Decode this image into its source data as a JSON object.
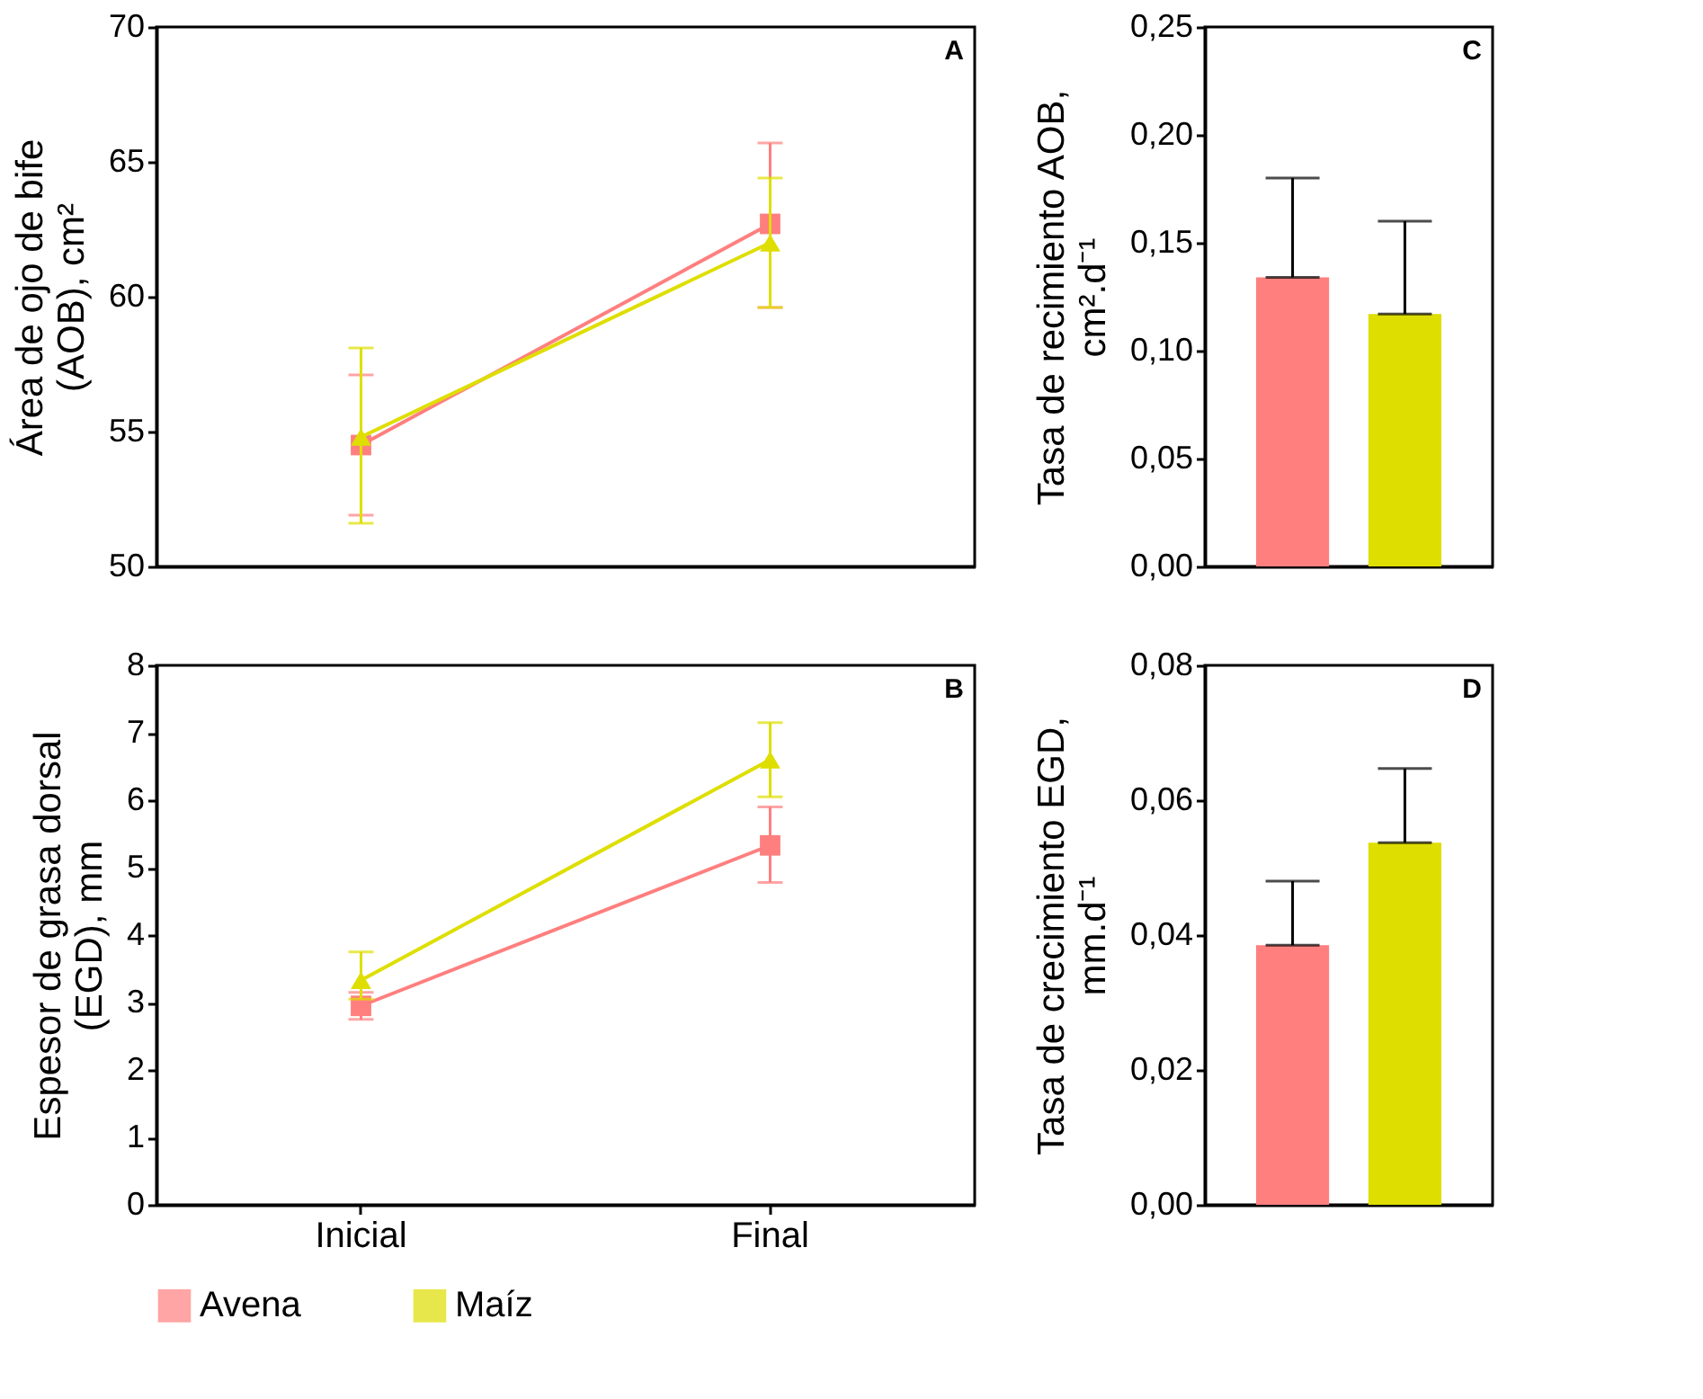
{
  "chart_data": [
    {
      "type": "line",
      "ylabel": "Área de ojo de bife\n(AOB), cm²",
      "categories": [
        null,
        null
      ],
      "ylim": [
        50,
        70
      ],
      "yticks": [
        50,
        55,
        60,
        65,
        70
      ],
      "tick_labels": "y",
      "legend": "bottom",
      "annotations": [
        "A"
      ],
      "series": [
        {
          "name": "Avena",
          "color": "#ff7f7f",
          "marker": "square",
          "values": [
            54.5,
            62.7
          ],
          "errors": [
            [
              51.9,
              57.1
            ],
            [
              59.6,
              65.7
            ]
          ]
        },
        {
          "name": "Maíz",
          "color": "#dede00",
          "marker": "triangle",
          "values": [
            54.8,
            62.0
          ],
          "errors": [
            [
              51.6,
              58.1
            ],
            [
              59.6,
              64.4
            ]
          ]
        }
      ]
    },
    {
      "type": "bar",
      "ylabel": "Tasa de recimiento AOB,\ncm².d⁻¹",
      "categories": [
        null
      ],
      "ylim": [
        0,
        0.25
      ],
      "yticks": [
        {
          "value": 0,
          "label": "0,00"
        },
        {
          "value": 0.05,
          "label": "0,05"
        },
        {
          "value": 0.1,
          "label": "0,10"
        },
        {
          "value": 0.15,
          "label": "0,15"
        },
        {
          "value": 0.2,
          "label": "0,20"
        },
        {
          "value": 0.25,
          "label": "0,25"
        }
      ],
      "tick_labels": "y",
      "legend": "bottom",
      "annotations": [
        "C"
      ],
      "series": [
        {
          "name": "Avena",
          "color": "#ff7f7f",
          "values": [
            0.134
          ],
          "errors": [
            [
              0.134,
              0.18
            ]
          ]
        },
        {
          "name": "Maíz",
          "color": "#dede00",
          "values": [
            0.117
          ],
          "errors": [
            [
              0.117,
              0.16
            ]
          ]
        }
      ]
    },
    {
      "type": "line",
      "ylabel": "Espesor de grasa dorsal\n(EGD), mm",
      "categories": [
        "Inicial",
        "Final"
      ],
      "ylim": [
        0,
        8
      ],
      "yticks": [
        0,
        1,
        2,
        3,
        4,
        5,
        6,
        7,
        8
      ],
      "legend": "bottom",
      "annotations": [
        "B"
      ],
      "series": [
        {
          "name": "Avena",
          "color": "#ff7f7f",
          "marker": "square",
          "values": [
            2.95,
            5.33
          ],
          "errors": [
            [
              2.75,
              3.15
            ],
            [
              4.78,
              5.9
            ]
          ]
        },
        {
          "name": "Maíz",
          "color": "#dede00",
          "marker": "triangle",
          "values": [
            3.33,
            6.6
          ],
          "errors": [
            [
              3.05,
              3.75
            ],
            [
              6.05,
              7.15
            ]
          ]
        }
      ]
    },
    {
      "type": "bar",
      "ylabel": "Tasa de crecimiento EGD,\nmm.d⁻¹",
      "categories": [
        null
      ],
      "ylim": [
        0,
        0.08
      ],
      "yticks": [
        {
          "value": 0,
          "label": "0,00"
        },
        {
          "value": 0.02,
          "label": "0,02"
        },
        {
          "value": 0.04,
          "label": "0,04"
        },
        {
          "value": 0.06,
          "label": "0,06"
        },
        {
          "value": 0.08,
          "label": "0,08"
        }
      ],
      "tick_labels": "y",
      "legend": "bottom",
      "annotations": [
        "D"
      ],
      "series": [
        {
          "name": "Avena",
          "color": "#ff7f7f",
          "values": [
            0.0385
          ],
          "errors": [
            [
              0.0385,
              0.048
            ]
          ]
        },
        {
          "name": "Maíz",
          "color": "#dede00",
          "values": [
            0.0537
          ],
          "errors": [
            [
              0.0537,
              0.0647
            ]
          ]
        }
      ]
    }
  ]
}
